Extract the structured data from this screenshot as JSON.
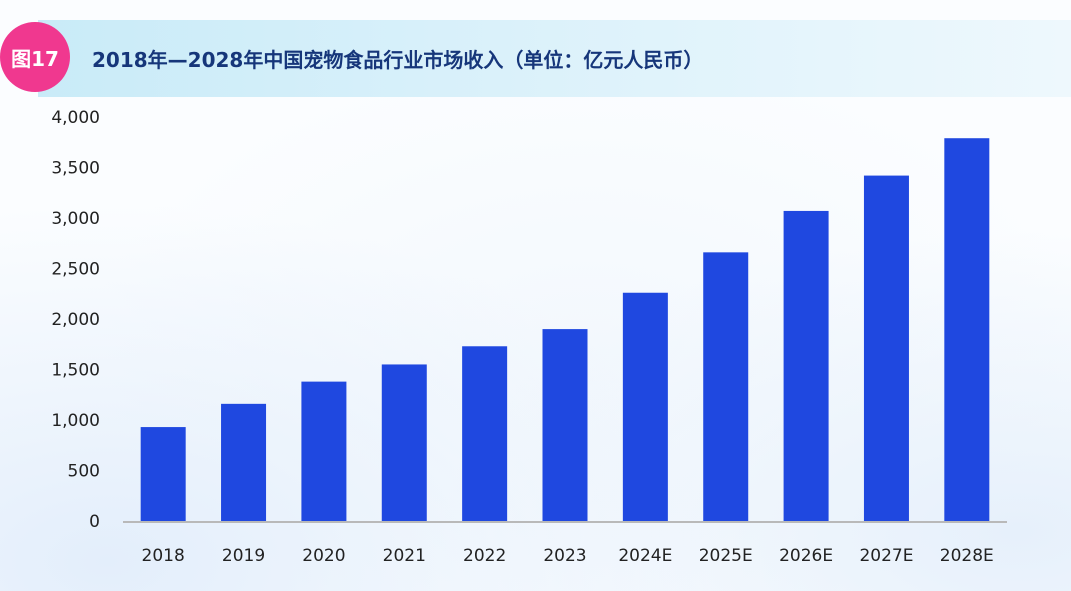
{
  "figure": {
    "badge": "图17",
    "title": "2018年—2028年中国宠物食品行业市场收入（单位：亿元人民币）"
  },
  "colors": {
    "bar": "#1f48e0",
    "badge": "#f0388f",
    "title": "#16367a",
    "axis": "#b9b9b9"
  },
  "chart_data": {
    "type": "bar",
    "title": "2018年—2028年中国宠物食品行业市场收入（单位：亿元人民币）",
    "xlabel": "",
    "ylabel": "",
    "categories": [
      "2018",
      "2019",
      "2020",
      "2021",
      "2022",
      "2023",
      "2024E",
      "2025E",
      "2026E",
      "2027E",
      "2028E"
    ],
    "values": [
      930,
      1160,
      1380,
      1550,
      1730,
      1900,
      2260,
      2660,
      3070,
      3420,
      3790
    ],
    "ylim": [
      0,
      4000
    ],
    "yticks": [
      0,
      500,
      1000,
      1500,
      2000,
      2500,
      3000,
      3500,
      4000
    ],
    "ytick_labels": [
      "0",
      "500",
      "1,000",
      "1,500",
      "2,000",
      "2,500",
      "3,000",
      "3,500",
      "4,000"
    ],
    "grid": false,
    "legend": "none"
  }
}
